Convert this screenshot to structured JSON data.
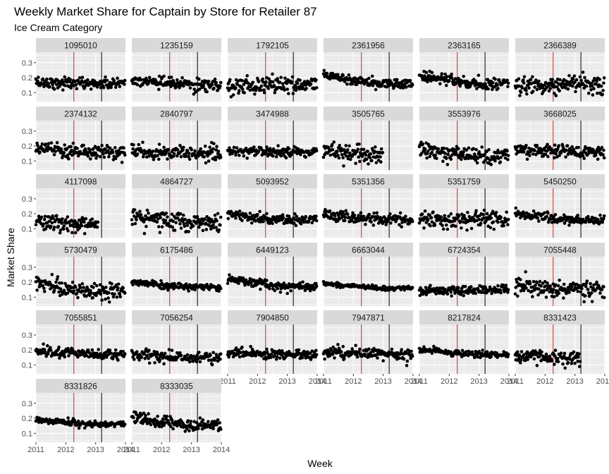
{
  "chart_data": {
    "type": "scatter",
    "title": "Weekly Market Share for Captain by Store for Retailer 87",
    "subtitle": "Ice Cream Category",
    "xlabel": "Week",
    "ylabel": "Market Share",
    "xlim": [
      2011,
      2014
    ],
    "ylim": [
      0.04,
      0.37
    ],
    "x_ticks": [
      2011,
      2012,
      2013,
      2014
    ],
    "x_tick_labels": [
      "2011",
      "2012",
      "2013",
      "2014"
    ],
    "y_ticks": [
      0.1,
      0.2,
      0.3
    ],
    "y_tick_labels": [
      "0.1",
      "0.2",
      "0.3"
    ],
    "grid": true,
    "legend": "none",
    "reference_lines": [
      {
        "x": 2012.27,
        "color": "#e41a1c"
      },
      {
        "x": 2013.2,
        "color": "#000000"
      }
    ],
    "colors": {
      "points": "#000000",
      "panel_bg": "#ebebeb",
      "strip_bg": "#d9d9d9",
      "grid": "#ffffff",
      "red_line": "#e41a1c"
    },
    "panels": [
      {
        "store": "1095010",
        "end": 2014.0,
        "center_start": 0.17,
        "center_end": 0.16,
        "noise": 0.035
      },
      {
        "store": "1235159",
        "end": 2014.0,
        "center_start": 0.18,
        "center_end": 0.15,
        "noise": 0.035
      },
      {
        "store": "1792105",
        "end": 2014.0,
        "center_start": 0.15,
        "center_end": 0.15,
        "noise": 0.05
      },
      {
        "store": "2361956",
        "end": 2014.0,
        "center_start": 0.22,
        "center_end": 0.16,
        "noise": 0.03
      },
      {
        "store": "2363165",
        "end": 2014.0,
        "center_start": 0.21,
        "center_end": 0.16,
        "noise": 0.035
      },
      {
        "store": "2366389",
        "end": 2014.0,
        "center_start": 0.15,
        "center_end": 0.15,
        "noise": 0.055
      },
      {
        "store": "2374132",
        "end": 2014.0,
        "center_start": 0.19,
        "center_end": 0.16,
        "noise": 0.04
      },
      {
        "store": "2840797",
        "end": 2014.0,
        "center_start": 0.16,
        "center_end": 0.15,
        "noise": 0.045
      },
      {
        "store": "3474988",
        "end": 2014.0,
        "center_start": 0.17,
        "center_end": 0.16,
        "noise": 0.03
      },
      {
        "store": "3505765",
        "end": 2013.0,
        "center_start": 0.17,
        "center_end": 0.14,
        "noise": 0.05
      },
      {
        "store": "3553976",
        "end": 2014.0,
        "center_start": 0.18,
        "center_end": 0.14,
        "noise": 0.05
      },
      {
        "store": "3668025",
        "end": 2014.0,
        "center_start": 0.17,
        "center_end": 0.16,
        "noise": 0.04
      },
      {
        "store": "4117098",
        "end": 2013.1,
        "center_start": 0.15,
        "center_end": 0.13,
        "noise": 0.045
      },
      {
        "store": "4864727",
        "end": 2014.0,
        "center_start": 0.18,
        "center_end": 0.14,
        "noise": 0.06
      },
      {
        "store": "5093952",
        "end": 2014.0,
        "center_start": 0.19,
        "center_end": 0.16,
        "noise": 0.03
      },
      {
        "store": "5351356",
        "end": 2014.0,
        "center_start": 0.19,
        "center_end": 0.16,
        "noise": 0.035
      },
      {
        "store": "5351759",
        "end": 2014.0,
        "center_start": 0.16,
        "center_end": 0.16,
        "noise": 0.05
      },
      {
        "store": "5450250",
        "end": 2014.0,
        "center_start": 0.2,
        "center_end": 0.16,
        "noise": 0.025
      },
      {
        "store": "5730479",
        "end": 2014.0,
        "center_start": 0.19,
        "center_end": 0.14,
        "noise": 0.05
      },
      {
        "store": "6175486",
        "end": 2014.0,
        "center_start": 0.2,
        "center_end": 0.17,
        "noise": 0.02
      },
      {
        "store": "6449123",
        "end": 2014.0,
        "center_start": 0.22,
        "center_end": 0.17,
        "noise": 0.025
      },
      {
        "store": "6663044",
        "end": 2014.0,
        "center_start": 0.19,
        "center_end": 0.16,
        "noise": 0.012
      },
      {
        "store": "6724354",
        "end": 2014.0,
        "center_start": 0.14,
        "center_end": 0.15,
        "noise": 0.025
      },
      {
        "store": "7055448",
        "end": 2014.0,
        "center_start": 0.17,
        "center_end": 0.15,
        "noise": 0.05
      },
      {
        "store": "7055851",
        "end": 2014.0,
        "center_start": 0.19,
        "center_end": 0.17,
        "noise": 0.03
      },
      {
        "store": "7056254",
        "end": 2014.0,
        "center_start": 0.17,
        "center_end": 0.15,
        "noise": 0.035
      },
      {
        "store": "7904850",
        "end": 2014.0,
        "center_start": 0.18,
        "center_end": 0.17,
        "noise": 0.03
      },
      {
        "store": "7947871",
        "end": 2014.0,
        "center_start": 0.19,
        "center_end": 0.17,
        "noise": 0.035
      },
      {
        "store": "8217824",
        "end": 2014.0,
        "center_start": 0.2,
        "center_end": 0.17,
        "noise": 0.02
      },
      {
        "store": "8331423",
        "end": 2013.2,
        "center_start": 0.16,
        "center_end": 0.14,
        "noise": 0.04
      },
      {
        "store": "8331826",
        "end": 2014.0,
        "center_start": 0.19,
        "center_end": 0.16,
        "noise": 0.018
      },
      {
        "store": "8333035",
        "end": 2014.0,
        "center_start": 0.21,
        "center_end": 0.15,
        "noise": 0.035
      }
    ]
  }
}
